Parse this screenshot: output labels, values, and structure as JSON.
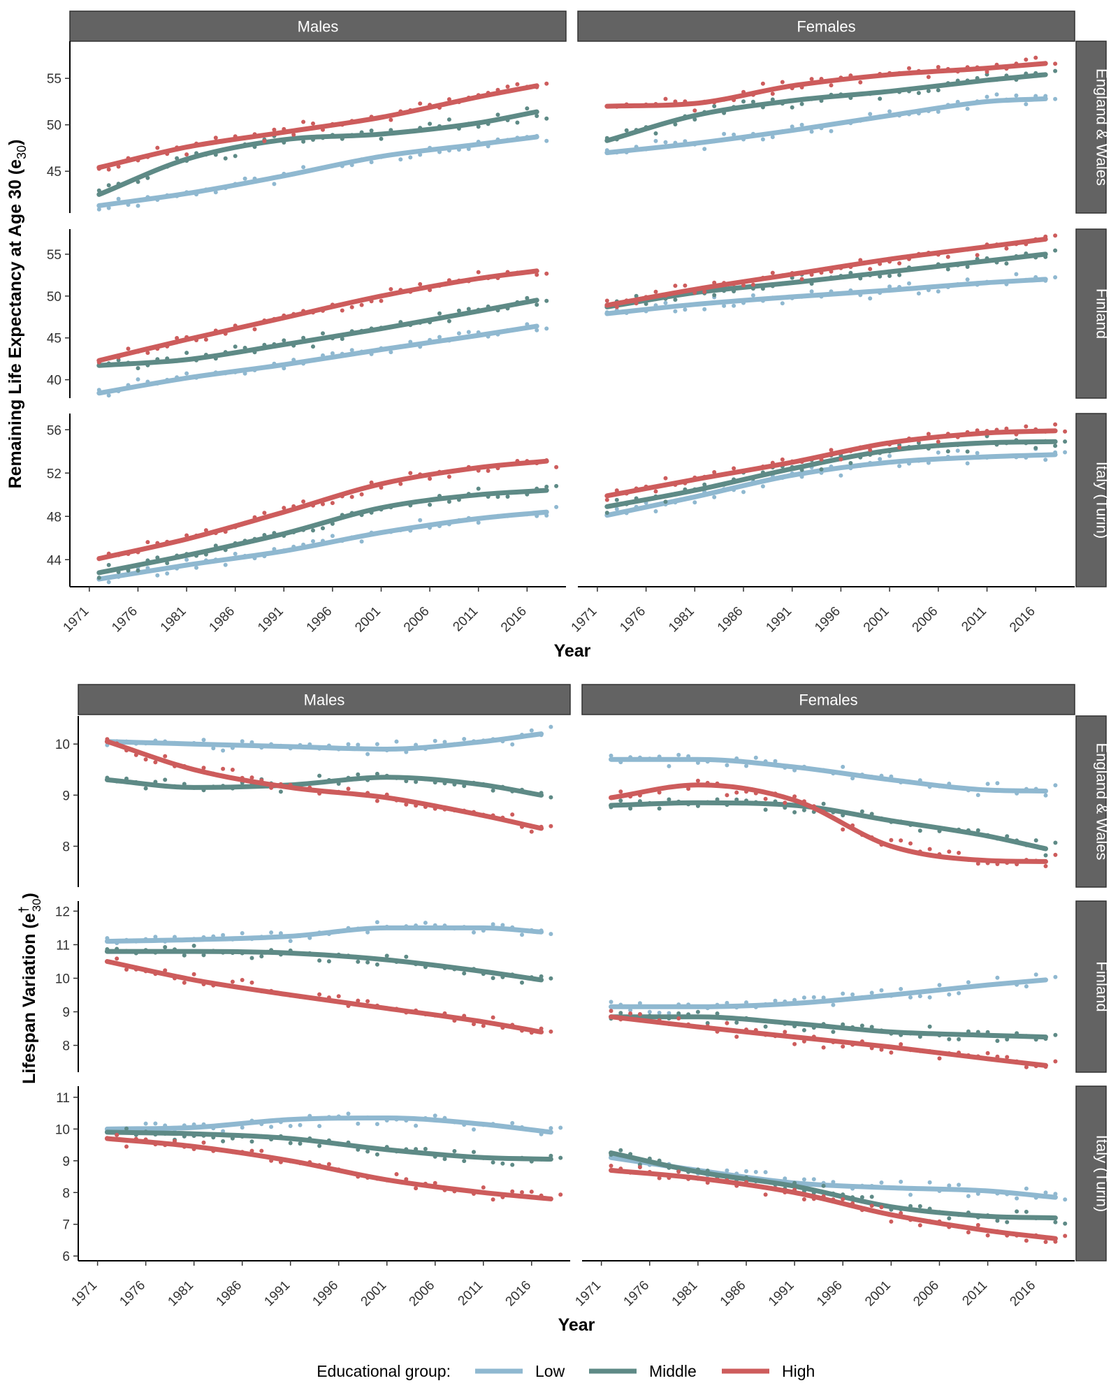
{
  "legend": {
    "title": "Educational group:",
    "items": [
      {
        "label": "Low",
        "color": "#8fb8d0"
      },
      {
        "label": "Middle",
        "color": "#5e8a86"
      },
      {
        "label": "High",
        "color": "#cd5c5c"
      }
    ]
  },
  "chart_data": [
    {
      "type": "line",
      "title": "Remaining Life Expectancy at Age 30",
      "ylabel": "Remaining Life Expectancy at Age 30 (e",
      "ylabel_sub": "30",
      "ylabel_suffix": ")",
      "xlabel": "Year",
      "x_ticks": [
        1971,
        1976,
        1981,
        1986,
        1991,
        1996,
        2001,
        2006,
        2011,
        2016
      ],
      "columns": [
        "Males",
        "Females"
      ],
      "xlim": [
        1969,
        2020
      ],
      "rows": [
        {
          "name": "England & Wales",
          "ylim": [
            40.5,
            59
          ],
          "y_ticks": [
            45,
            50,
            55
          ],
          "panels": [
            {
              "sex": "Males",
              "x": [
                1972,
                1981,
                1991,
                2001,
                2011,
                2017
              ],
              "series": [
                {
                  "name": "Low",
                  "values": [
                    41.3,
                    42.6,
                    44.5,
                    46.6,
                    47.9,
                    48.7
                  ]
                },
                {
                  "name": "Middle",
                  "values": [
                    42.5,
                    46.3,
                    48.4,
                    49.0,
                    50.2,
                    51.4
                  ]
                },
                {
                  "name": "High",
                  "values": [
                    45.4,
                    47.6,
                    49.2,
                    50.8,
                    53.0,
                    54.2
                  ]
                }
              ]
            },
            {
              "sex": "Females",
              "x": [
                1972,
                1981,
                1991,
                2001,
                2011,
                2017
              ],
              "series": [
                {
                  "name": "Low",
                  "values": [
                    47.0,
                    48.0,
                    49.4,
                    51.0,
                    52.5,
                    52.8
                  ]
                },
                {
                  "name": "Middle",
                  "values": [
                    48.3,
                    51.0,
                    52.6,
                    53.6,
                    54.8,
                    55.4
                  ]
                },
                {
                  "name": "High",
                  "values": [
                    52.0,
                    52.3,
                    54.2,
                    55.4,
                    56.1,
                    56.6
                  ]
                }
              ]
            }
          ]
        },
        {
          "name": "Finland",
          "ylim": [
            37.8,
            58
          ],
          "y_ticks": [
            40,
            45,
            50,
            55
          ],
          "panels": [
            {
              "sex": "Males",
              "x": [
                1972,
                1981,
                1991,
                2001,
                2011,
                2017
              ],
              "series": [
                {
                  "name": "Low",
                  "values": [
                    38.4,
                    40.2,
                    41.8,
                    43.6,
                    45.3,
                    46.4
                  ]
                },
                {
                  "name": "Middle",
                  "values": [
                    41.7,
                    42.4,
                    44.2,
                    46.1,
                    48.2,
                    49.5
                  ]
                },
                {
                  "name": "High",
                  "values": [
                    42.3,
                    44.8,
                    47.4,
                    50.0,
                    52.1,
                    53.0
                  ]
                }
              ]
            },
            {
              "sex": "Females",
              "x": [
                1972,
                1981,
                1991,
                2001,
                2011,
                2017
              ],
              "series": [
                {
                  "name": "Low",
                  "values": [
                    47.9,
                    49.0,
                    49.9,
                    50.7,
                    51.6,
                    52.0
                  ]
                },
                {
                  "name": "Middle",
                  "values": [
                    48.7,
                    50.4,
                    51.6,
                    52.9,
                    54.2,
                    55.0
                  ]
                },
                {
                  "name": "High",
                  "values": [
                    48.9,
                    50.8,
                    52.6,
                    54.4,
                    55.9,
                    56.8
                  ]
                }
              ]
            }
          ]
        },
        {
          "name": "Italy (Turin)",
          "ylim": [
            41.5,
            57.5
          ],
          "y_ticks": [
            44,
            48,
            52,
            56
          ],
          "panels": [
            {
              "sex": "Males",
              "x": [
                1972,
                1981,
                1991,
                2001,
                2011,
                2018
              ],
              "series": [
                {
                  "name": "Low",
                  "values": [
                    42.2,
                    43.5,
                    44.8,
                    46.5,
                    47.8,
                    48.4
                  ]
                },
                {
                  "name": "Middle",
                  "values": [
                    42.8,
                    44.4,
                    46.4,
                    48.8,
                    50.0,
                    50.4
                  ]
                },
                {
                  "name": "High",
                  "values": [
                    44.1,
                    45.9,
                    48.4,
                    51.0,
                    52.5,
                    53.1
                  ]
                }
              ]
            },
            {
              "sex": "Females",
              "x": [
                1972,
                1981,
                1991,
                2001,
                2011,
                2018
              ],
              "series": [
                {
                  "name": "Low",
                  "values": [
                    48.1,
                    49.8,
                    51.8,
                    53.0,
                    53.5,
                    53.7
                  ]
                },
                {
                  "name": "Middle",
                  "values": [
                    48.9,
                    50.4,
                    52.4,
                    54.1,
                    54.8,
                    54.9
                  ]
                },
                {
                  "name": "High",
                  "values": [
                    49.9,
                    51.4,
                    53.0,
                    54.8,
                    55.7,
                    55.9
                  ]
                }
              ]
            }
          ]
        }
      ]
    },
    {
      "type": "line",
      "title": "Lifespan Variation",
      "ylabel": "Lifespan Variation (e",
      "ylabel_sup": "†",
      "ylabel_sub": "30",
      "ylabel_suffix": ")",
      "xlabel": "Year",
      "x_ticks": [
        1971,
        1976,
        1981,
        1986,
        1991,
        1996,
        2001,
        2006,
        2011,
        2016
      ],
      "columns": [
        "Males",
        "Females"
      ],
      "xlim": [
        1969,
        2020
      ],
      "rows": [
        {
          "name": "England & Wales",
          "ylim": [
            7.2,
            10.55
          ],
          "y_ticks": [
            8,
            9,
            10
          ],
          "panels": [
            {
              "sex": "Males",
              "x": [
                1972,
                1981,
                1991,
                2001,
                2011,
                2017
              ],
              "series": [
                {
                  "name": "Low",
                  "values": [
                    10.05,
                    10.0,
                    9.95,
                    9.9,
                    10.05,
                    10.2
                  ]
                },
                {
                  "name": "Middle",
                  "values": [
                    9.3,
                    9.15,
                    9.2,
                    9.35,
                    9.2,
                    9.0
                  ]
                },
                {
                  "name": "High",
                  "values": [
                    10.05,
                    9.5,
                    9.15,
                    8.95,
                    8.6,
                    8.35
                  ]
                }
              ]
            },
            {
              "sex": "Females",
              "x": [
                1972,
                1981,
                1991,
                2001,
                2011,
                2017
              ],
              "series": [
                {
                  "name": "Low",
                  "values": [
                    9.7,
                    9.7,
                    9.55,
                    9.3,
                    9.1,
                    9.08
                  ]
                },
                {
                  "name": "Middle",
                  "values": [
                    8.8,
                    8.85,
                    8.8,
                    8.5,
                    8.2,
                    7.95
                  ]
                },
                {
                  "name": "High",
                  "values": [
                    8.95,
                    9.2,
                    8.9,
                    8.0,
                    7.72,
                    7.7
                  ]
                }
              ]
            }
          ]
        },
        {
          "name": "Finland",
          "ylim": [
            7.2,
            12.3
          ],
          "y_ticks": [
            8,
            9,
            10,
            11,
            12
          ],
          "panels": [
            {
              "sex": "Males",
              "x": [
                1972,
                1981,
                1991,
                2001,
                2011,
                2017
              ],
              "series": [
                {
                  "name": "Low",
                  "values": [
                    11.1,
                    11.15,
                    11.25,
                    11.5,
                    11.5,
                    11.38
                  ]
                },
                {
                  "name": "Middle",
                  "values": [
                    10.8,
                    10.8,
                    10.75,
                    10.55,
                    10.2,
                    9.95
                  ]
                },
                {
                  "name": "High",
                  "values": [
                    10.5,
                    9.95,
                    9.5,
                    9.1,
                    8.7,
                    8.4
                  ]
                }
              ]
            },
            {
              "sex": "Females",
              "x": [
                1972,
                1981,
                1991,
                2001,
                2011,
                2017
              ],
              "series": [
                {
                  "name": "Low",
                  "values": [
                    9.15,
                    9.15,
                    9.25,
                    9.5,
                    9.8,
                    9.95
                  ]
                },
                {
                  "name": "Middle",
                  "values": [
                    8.85,
                    8.85,
                    8.65,
                    8.4,
                    8.3,
                    8.25
                  ]
                },
                {
                  "name": "High",
                  "values": [
                    8.85,
                    8.55,
                    8.25,
                    7.95,
                    7.6,
                    7.4
                  ]
                }
              ]
            }
          ]
        },
        {
          "name": "Italy (Turin)",
          "ylim": [
            5.85,
            11.35
          ],
          "y_ticks": [
            6,
            7,
            8,
            9,
            10,
            11
          ],
          "panels": [
            {
              "sex": "Males",
              "x": [
                1972,
                1981,
                1991,
                2001,
                2011,
                2018
              ],
              "series": [
                {
                  "name": "Low",
                  "values": [
                    10.0,
                    10.05,
                    10.3,
                    10.35,
                    10.15,
                    9.9
                  ]
                },
                {
                  "name": "Middle",
                  "values": [
                    9.9,
                    9.85,
                    9.7,
                    9.35,
                    9.1,
                    9.05
                  ]
                },
                {
                  "name": "High",
                  "values": [
                    9.7,
                    9.45,
                    9.0,
                    8.4,
                    8.0,
                    7.8
                  ]
                }
              ]
            },
            {
              "sex": "Females",
              "x": [
                1972,
                1981,
                1991,
                2001,
                2011,
                2018
              ],
              "series": [
                {
                  "name": "Low",
                  "values": [
                    9.1,
                    8.7,
                    8.3,
                    8.15,
                    8.05,
                    7.85
                  ]
                },
                {
                  "name": "Middle",
                  "values": [
                    9.25,
                    8.65,
                    8.2,
                    7.55,
                    7.25,
                    7.2
                  ]
                },
                {
                  "name": "High",
                  "values": [
                    8.7,
                    8.45,
                    8.0,
                    7.3,
                    6.8,
                    6.55
                  ]
                }
              ]
            }
          ]
        }
      ]
    }
  ]
}
